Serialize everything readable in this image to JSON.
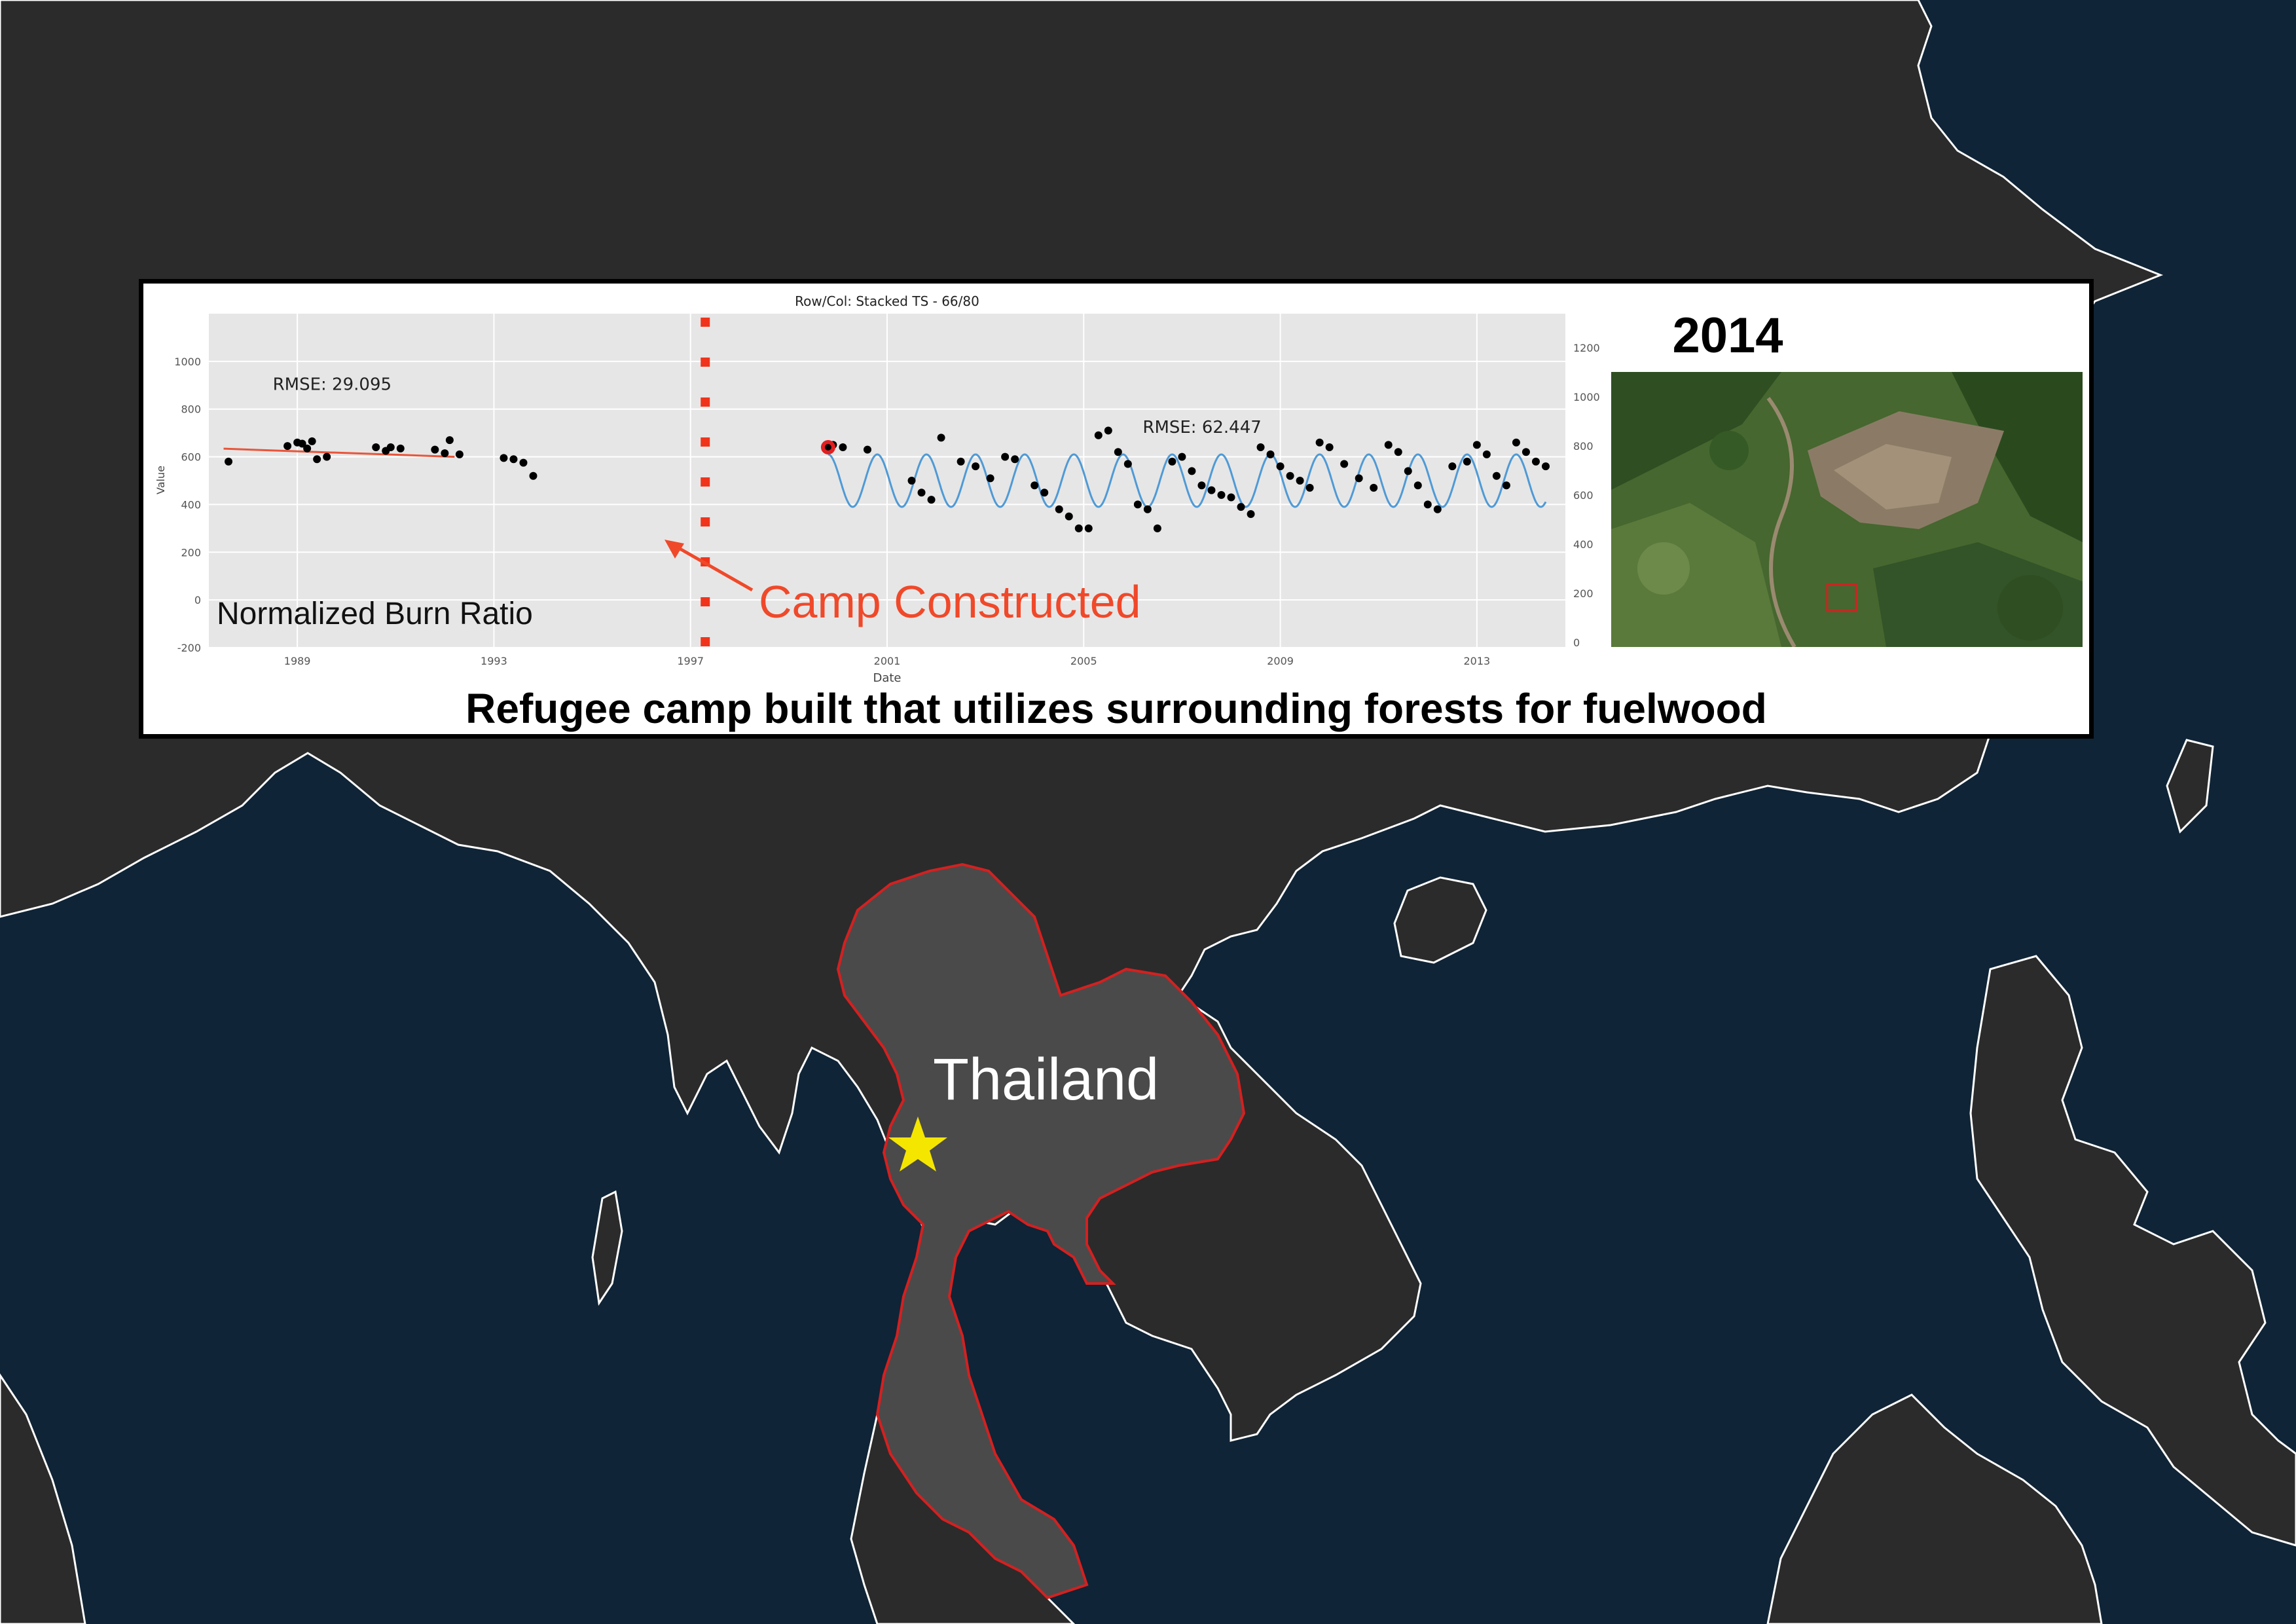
{
  "map": {
    "country_label": "Thailand",
    "ocean_color": "#0f2436",
    "land_color": "#2b2b2b",
    "highlight_fill": "#4a4a4a",
    "highlight_border": "#d42020",
    "marker_icon": "star-icon",
    "marker_color": "#f5e600"
  },
  "panel": {
    "caption": "Refugee camp built that utilizes surrounding forests for fuelwood",
    "image_year": "2014",
    "annotation": "Camp Constructed",
    "overlay_label": "Normalized Burn Ratio",
    "annotation_color": "#f0492a"
  },
  "chart_data": {
    "type": "scatter",
    "title": "Row/Col: Stacked TS - 66/80",
    "xlabel": "Date",
    "ylabel": "Value",
    "x_ticks": [
      "1989",
      "1993",
      "1997",
      "2001",
      "2005",
      "2009",
      "2013"
    ],
    "y_ticks_left": [
      -200,
      0,
      200,
      400,
      600,
      800,
      1000
    ],
    "y_ticks_right": [
      0,
      200,
      400,
      600,
      800,
      1000,
      1200
    ],
    "xlim": [
      1987.2,
      2014.8
    ],
    "ylim": [
      -200,
      1200
    ],
    "grid": true,
    "break_year": 1997.3,
    "segments": [
      {
        "rmse_label": "RMSE: 29.095",
        "fit": "linear",
        "fit_color": "#e8553a",
        "start": [
          1987.5,
          634
        ],
        "end": [
          1992.2,
          600
        ],
        "points": [
          [
            1987.6,
            580
          ],
          [
            1988.8,
            645
          ],
          [
            1989.0,
            660
          ],
          [
            1989.1,
            655
          ],
          [
            1989.2,
            635
          ],
          [
            1989.3,
            665
          ],
          [
            1989.4,
            590
          ],
          [
            1989.6,
            600
          ],
          [
            1990.6,
            640
          ],
          [
            1990.8,
            625
          ],
          [
            1990.9,
            640
          ],
          [
            1991.1,
            635
          ],
          [
            1991.8,
            630
          ],
          [
            1992.0,
            615
          ],
          [
            1992.1,
            670
          ],
          [
            1992.3,
            610
          ],
          [
            1993.2,
            595
          ],
          [
            1993.4,
            590
          ],
          [
            1993.6,
            575
          ],
          [
            1993.8,
            520
          ]
        ]
      },
      {
        "rmse_label": "RMSE: 62.447",
        "fit": "harmonic",
        "fit_color": "#4f9ad6",
        "start_year": 1999.8,
        "end_year": 2014.4,
        "mean": 500,
        "amplitude": 110,
        "period_years": 1.0,
        "highlight_point": [
          1999.8,
          640
        ],
        "points": [
          [
            1999.9,
            650
          ],
          [
            2000.1,
            640
          ],
          [
            2000.6,
            630
          ],
          [
            2001.5,
            500
          ],
          [
            2001.7,
            450
          ],
          [
            2001.9,
            420
          ],
          [
            2002.1,
            680
          ],
          [
            2002.5,
            580
          ],
          [
            2002.8,
            560
          ],
          [
            2003.1,
            510
          ],
          [
            2003.4,
            600
          ],
          [
            2003.6,
            590
          ],
          [
            2004.0,
            480
          ],
          [
            2004.2,
            450
          ],
          [
            2004.5,
            380
          ],
          [
            2004.7,
            350
          ],
          [
            2004.9,
            300
          ],
          [
            2005.1,
            300
          ],
          [
            2005.3,
            690
          ],
          [
            2005.5,
            710
          ],
          [
            2005.7,
            620
          ],
          [
            2005.9,
            570
          ],
          [
            2006.1,
            400
          ],
          [
            2006.3,
            380
          ],
          [
            2006.5,
            300
          ],
          [
            2006.8,
            580
          ],
          [
            2007.0,
            600
          ],
          [
            2007.2,
            540
          ],
          [
            2007.4,
            480
          ],
          [
            2007.6,
            460
          ],
          [
            2007.8,
            440
          ],
          [
            2008.0,
            430
          ],
          [
            2008.2,
            390
          ],
          [
            2008.4,
            360
          ],
          [
            2008.6,
            640
          ],
          [
            2008.8,
            610
          ],
          [
            2009.0,
            560
          ],
          [
            2009.2,
            520
          ],
          [
            2009.4,
            500
          ],
          [
            2009.6,
            470
          ],
          [
            2009.8,
            660
          ],
          [
            2010.0,
            640
          ],
          [
            2010.3,
            570
          ],
          [
            2010.6,
            510
          ],
          [
            2010.9,
            470
          ],
          [
            2011.2,
            650
          ],
          [
            2011.4,
            620
          ],
          [
            2011.6,
            540
          ],
          [
            2011.8,
            480
          ],
          [
            2012.0,
            400
          ],
          [
            2012.2,
            380
          ],
          [
            2012.5,
            560
          ],
          [
            2012.8,
            580
          ],
          [
            2013.0,
            650
          ],
          [
            2013.2,
            610
          ],
          [
            2013.4,
            520
          ],
          [
            2013.6,
            480
          ],
          [
            2013.8,
            660
          ],
          [
            2014.0,
            620
          ],
          [
            2014.2,
            580
          ],
          [
            2014.4,
            560
          ]
        ]
      }
    ]
  }
}
